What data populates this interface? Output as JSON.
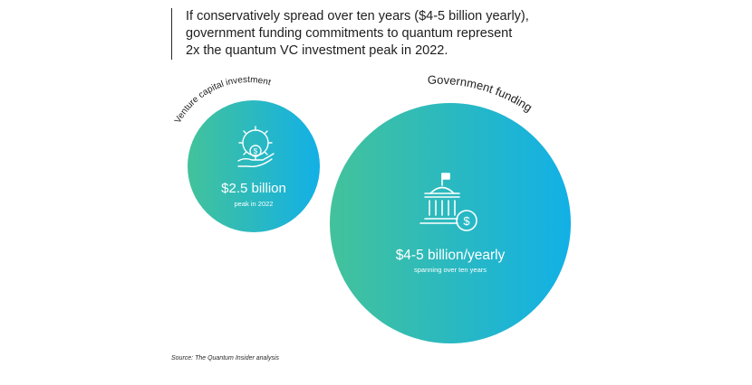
{
  "headline": {
    "lines": [
      "If conservatively spread over ten years ($4-5 billion yearly),",
      "government funding commitments to quantum represent",
      "2x the quantum VC investment peak in 2022."
    ]
  },
  "source": "Source: The Quantum Insider analysis",
  "colors": {
    "gradient_start": "#43c29a",
    "gradient_end": "#12b0e6",
    "text_on_bubble": "#ffffff",
    "label": "#1e1e1e"
  },
  "icons": {
    "venture": "gear-dollar-hand-icon",
    "government": "government-building-dollar-icon"
  },
  "chart_data": {
    "type": "bubble",
    "unit": "USD billion",
    "bubbles": [
      {
        "label": "Venture capital investment",
        "value_text": "$2.5 billion",
        "sub_text": "peak in 2022",
        "value": 2.5
      },
      {
        "label": "Government funding",
        "value_text": "$4-5 billion/yearly",
        "sub_text": "spanning over ten years",
        "value": 4.5,
        "value_range": [
          4,
          5
        ]
      }
    ]
  }
}
